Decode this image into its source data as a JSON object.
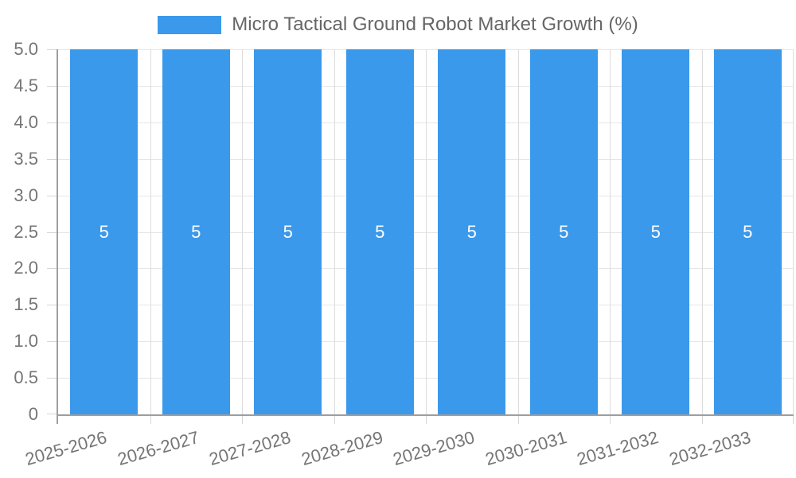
{
  "chart_data": {
    "type": "bar",
    "title": "Micro Tactical Ground Robot Market Growth (%)",
    "legend": {
      "position": "top",
      "label": "Micro Tactical Ground Robot Market Growth (%)"
    },
    "categories": [
      "2025-2026",
      "2026-2027",
      "2027-2028",
      "2028-2029",
      "2029-2030",
      "2030-2031",
      "2031-2032",
      "2032-2033"
    ],
    "values": [
      5,
      5,
      5,
      5,
      5,
      5,
      5,
      5
    ],
    "value_labels": [
      "5",
      "5",
      "5",
      "5",
      "5",
      "5",
      "5",
      "5"
    ],
    "xlabel": "",
    "ylabel": "",
    "ylim": [
      0,
      5
    ],
    "ytick_labels": [
      "5.0",
      "4.5",
      "4.0",
      "3.5",
      "3.0",
      "2.5",
      "2.0",
      "1.5",
      "1.0",
      "0.5",
      "0"
    ],
    "grid": true,
    "colors": {
      "bar": "#3B99EC",
      "legend-text": "#666666",
      "tick-text": "#757575",
      "axis": "#9E9E9E",
      "grid": "#E6E6E6",
      "grid-v": "#DCDCDC",
      "tick": "#D6D6D6",
      "value-text": "#FFFFFF"
    }
  }
}
